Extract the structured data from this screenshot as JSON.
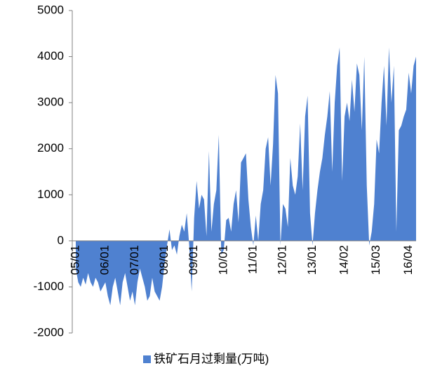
{
  "chart_data": {
    "type": "area",
    "categories": [
      "05/01",
      null,
      null,
      null,
      null,
      null,
      null,
      null,
      null,
      null,
      null,
      null,
      "06/01",
      null,
      null,
      null,
      null,
      null,
      null,
      null,
      null,
      null,
      null,
      null,
      "07/01",
      null,
      null,
      null,
      null,
      null,
      null,
      null,
      null,
      null,
      null,
      null,
      "08/01",
      null,
      null,
      null,
      null,
      null,
      null,
      null,
      null,
      null,
      null,
      null,
      "09/01",
      null,
      null,
      null,
      null,
      null,
      null,
      null,
      null,
      null,
      null,
      null,
      "10/01",
      null,
      null,
      null,
      null,
      null,
      null,
      null,
      null,
      null,
      null,
      null,
      "11/01",
      null,
      null,
      null,
      null,
      null,
      null,
      null,
      null,
      null,
      null,
      null,
      "12/01",
      null,
      null,
      null,
      null,
      null,
      null,
      null,
      null,
      null,
      null,
      null,
      "13/01",
      null,
      null,
      null,
      null,
      null,
      null,
      null,
      null,
      null,
      null,
      null,
      null,
      "14/02",
      null,
      null,
      null,
      null,
      null,
      null,
      null,
      null,
      null,
      null,
      null,
      null,
      "15/03",
      null,
      null,
      null,
      null,
      null,
      null,
      null,
      null,
      null,
      null,
      null,
      null,
      "16/04",
      null,
      null,
      null
    ],
    "series": [
      {
        "name": "铁矿石月过剩量(万吨)",
        "color": "#4f81d0",
        "values": [
          -600,
          -900,
          -1000,
          -800,
          -950,
          -700,
          -900,
          -1000,
          -800,
          -900,
          -1100,
          -1000,
          -900,
          -1200,
          -1400,
          -1000,
          -800,
          -1100,
          -1400,
          -900,
          -700,
          -1000,
          -1300,
          -1100,
          -1400,
          -900,
          -600,
          -800,
          -1000,
          -1300,
          -1200,
          -800,
          -1100,
          -1200,
          -1300,
          -1000,
          -500,
          -100,
          250,
          -200,
          -100,
          -300,
          100,
          350,
          200,
          600,
          -100,
          -1100,
          500,
          1300,
          700,
          1000,
          900,
          100,
          1950,
          200,
          800,
          1100,
          2300,
          -300,
          -200,
          450,
          500,
          200,
          800,
          1100,
          400,
          1700,
          1800,
          1900,
          900,
          300,
          -100,
          550,
          0,
          800,
          1100,
          2000,
          2250,
          1200,
          2100,
          3600,
          3200,
          -100,
          800,
          700,
          300,
          1800,
          1200,
          1000,
          1400,
          2550,
          1100,
          2700,
          3150,
          600,
          -100,
          600,
          1100,
          1500,
          1800,
          2300,
          2700,
          3250,
          1500,
          3000,
          3800,
          4200,
          1300,
          2700,
          3000,
          2600,
          3500,
          2800,
          3850,
          3600,
          2400,
          4000,
          1200,
          -100,
          200,
          800,
          2200,
          1900,
          3000,
          3800,
          2500,
          4200,
          3000,
          3800,
          200,
          2400,
          2500,
          2700,
          2850,
          3650,
          3200,
          3800,
          4000
        ]
      }
    ],
    "ylim": [
      -2000,
      5000
    ],
    "yticks": [
      -2000,
      -1000,
      0,
      1000,
      2000,
      3000,
      4000,
      5000
    ],
    "legend": "bottom"
  }
}
